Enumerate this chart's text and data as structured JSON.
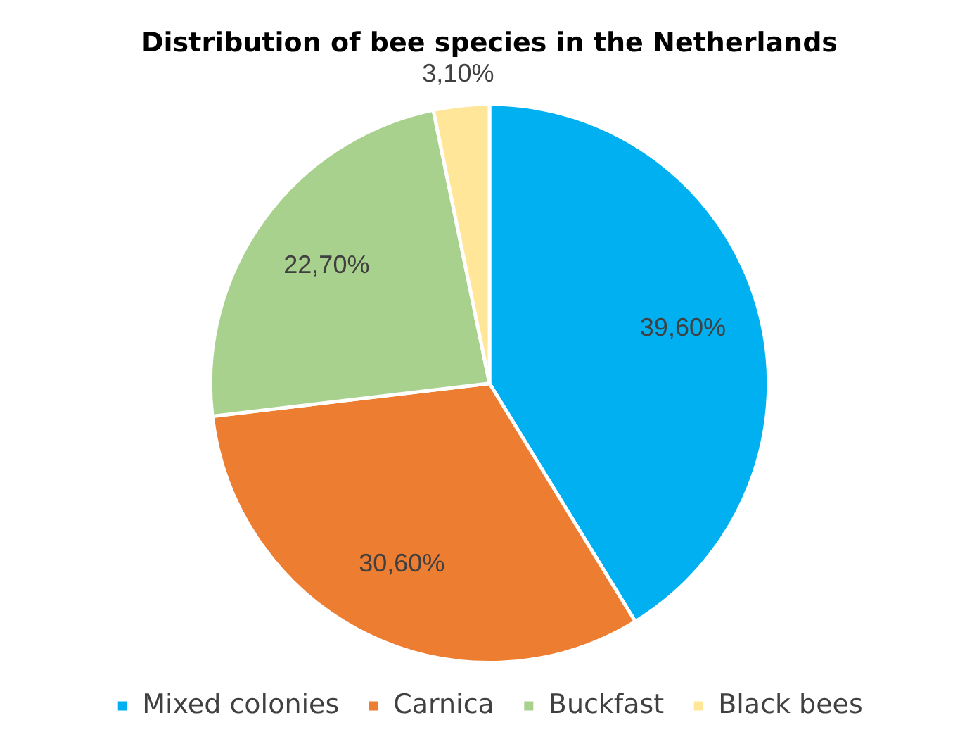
{
  "chart_data": {
    "type": "pie",
    "title": "Distribution of bee species in the Netherlands",
    "categories": [
      "Mixed colonies",
      "Carnica",
      "Buckfast",
      "Black bees"
    ],
    "values": [
      39.6,
      30.6,
      22.7,
      3.1
    ],
    "colors": [
      "#00b0f0",
      "#ed7d31",
      "#a9d18e",
      "#ffe699"
    ],
    "value_labels": [
      "39,60%",
      "30,60%",
      "22,70%",
      "3,10%"
    ],
    "legend": "bottom"
  }
}
